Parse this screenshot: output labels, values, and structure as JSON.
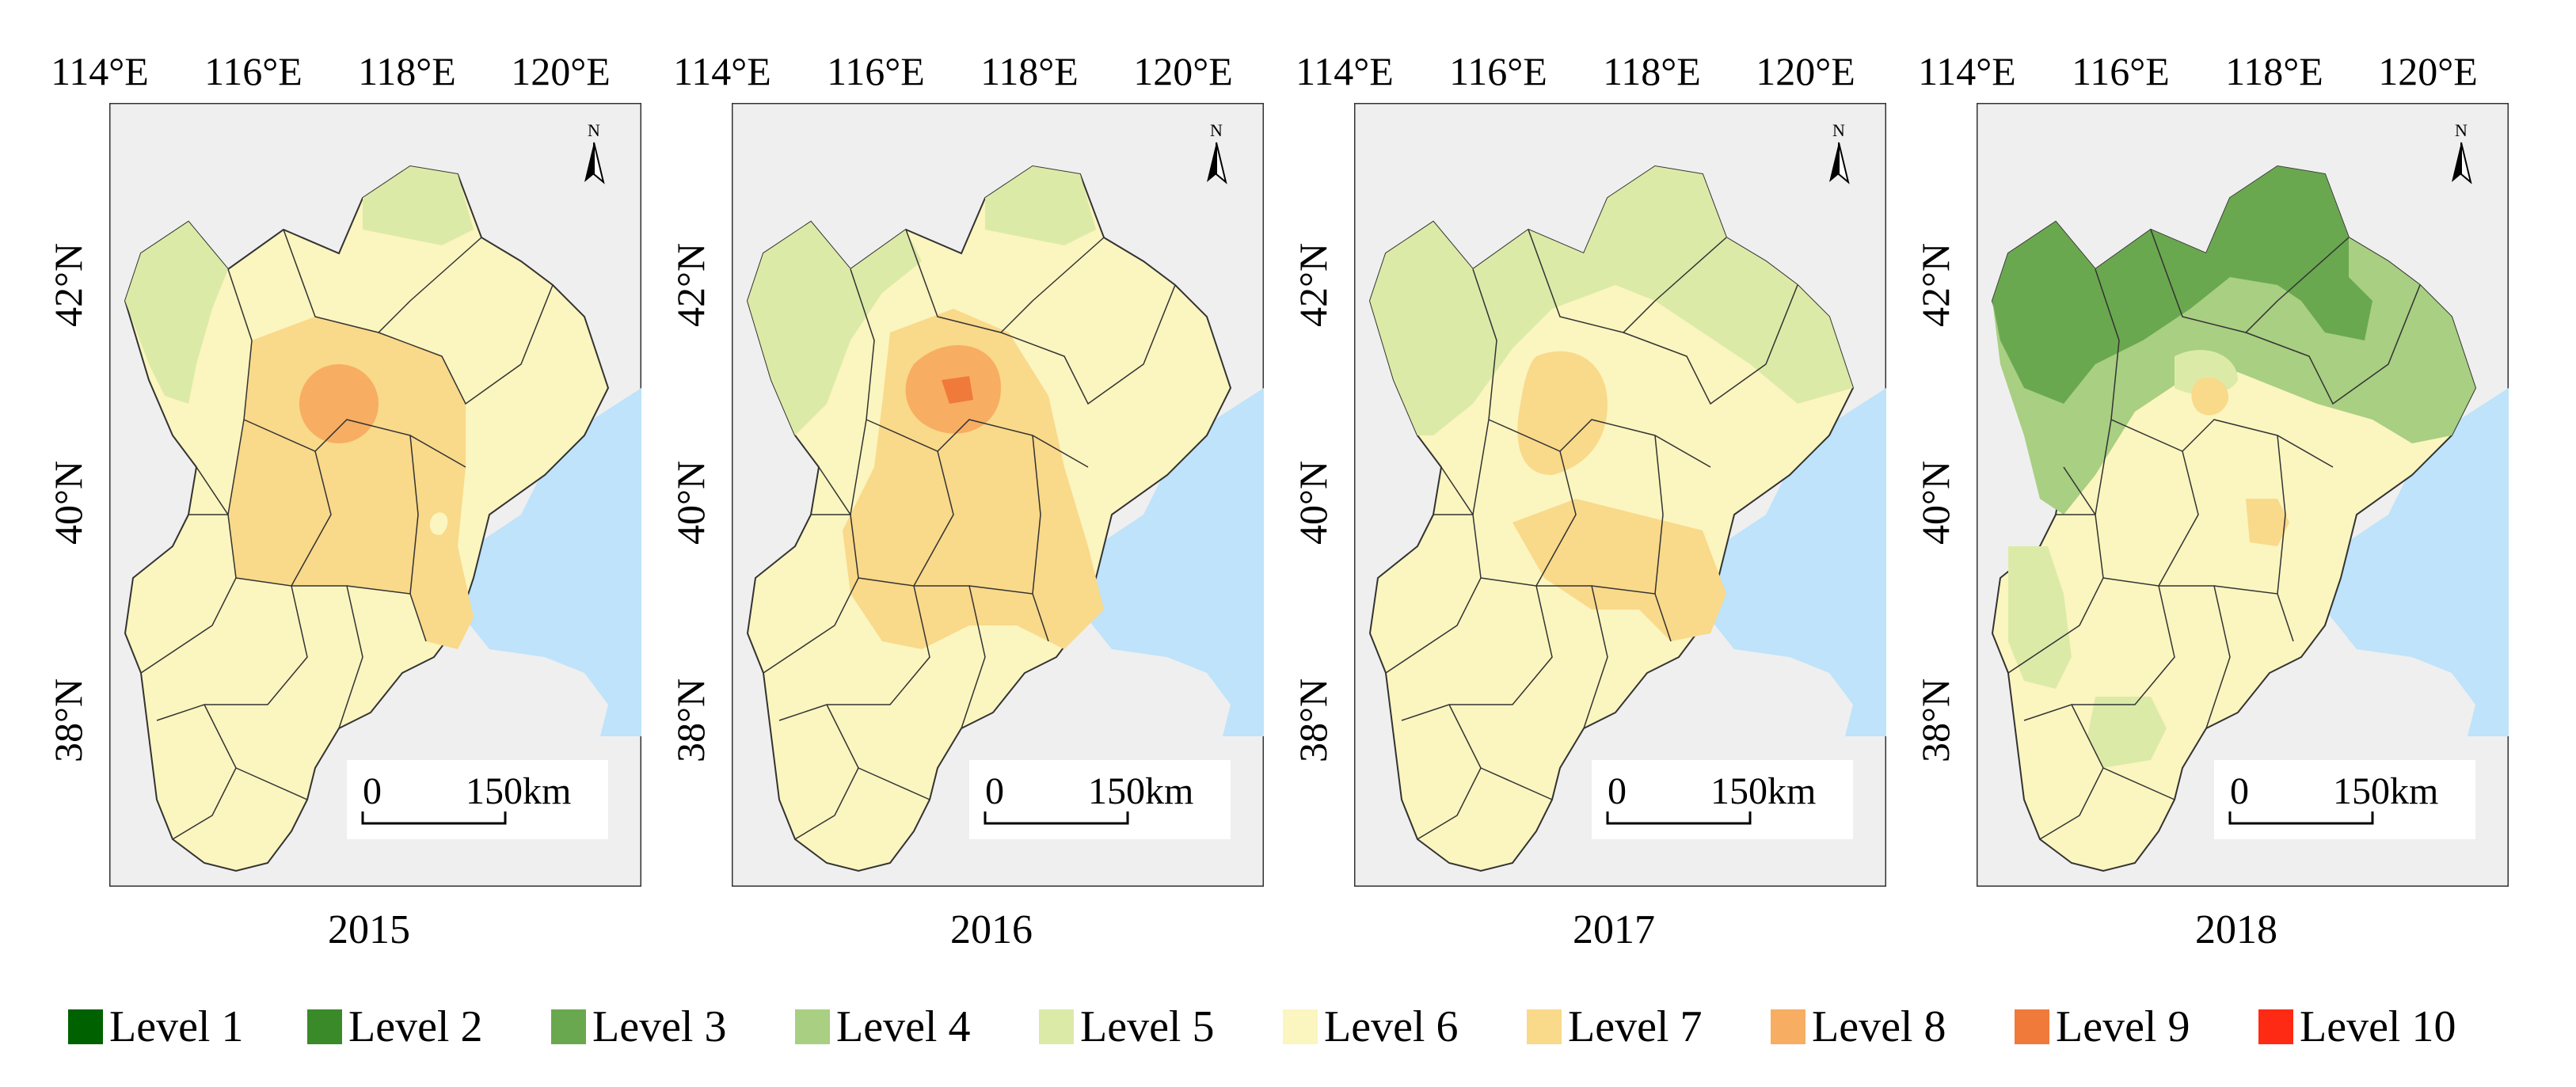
{
  "maps": [
    {
      "year": "2015",
      "lon_ticks": [
        "114°E",
        "116°E",
        "118°E",
        "120°E"
      ],
      "lat_ticks": [
        "42°N",
        "40°N",
        "38°N"
      ],
      "scale": {
        "zero": "0",
        "dist": "150km"
      },
      "north": "N",
      "regions": [
        "level-5",
        "level-6",
        "level-7",
        "level-8"
      ]
    },
    {
      "year": "2016",
      "lon_ticks": [
        "114°E",
        "116°E",
        "118°E",
        "120°E"
      ],
      "lat_ticks": [
        "42°N",
        "40°N",
        "38°N"
      ],
      "scale": {
        "zero": "0",
        "dist": "150km"
      },
      "north": "N",
      "regions": [
        "level-5",
        "level-6",
        "level-7",
        "level-8",
        "level-9"
      ]
    },
    {
      "year": "2017",
      "lon_ticks": [
        "114°E",
        "116°E",
        "118°E",
        "120°E"
      ],
      "lat_ticks": [
        "42°N",
        "40°N",
        "38°N"
      ],
      "scale": {
        "zero": "0",
        "dist": "150km"
      },
      "north": "N",
      "regions": [
        "level-5",
        "level-6",
        "level-7"
      ]
    },
    {
      "year": "2018",
      "lon_ticks": [
        "114°E",
        "116°E",
        "118°E",
        "120°E"
      ],
      "lat_ticks": [
        "42°N",
        "40°N",
        "38°N"
      ],
      "scale": {
        "zero": "0",
        "dist": "150km"
      },
      "north": "N",
      "regions": [
        "level-3",
        "level-4",
        "level-5",
        "level-6",
        "level-7"
      ]
    }
  ],
  "legend": [
    {
      "label": "Level 1",
      "color": "#006100"
    },
    {
      "label": "Level 2",
      "color": "#3a8a2a"
    },
    {
      "label": "Level 3",
      "color": "#6aa84f"
    },
    {
      "label": "Level 4",
      "color": "#a8cf82"
    },
    {
      "label": "Level 5",
      "color": "#dceaa8"
    },
    {
      "label": "Level 6",
      "color": "#fbf5bf"
    },
    {
      "label": "Level 7",
      "color": "#f9d98a"
    },
    {
      "label": "Level 8",
      "color": "#f7ad62"
    },
    {
      "label": "Level 9",
      "color": "#f07a3a"
    },
    {
      "label": "Level 10",
      "color": "#ff2a14"
    }
  ],
  "colors": {
    "background": "#efefef",
    "sea": "#bee3fa",
    "border": "#333333"
  }
}
